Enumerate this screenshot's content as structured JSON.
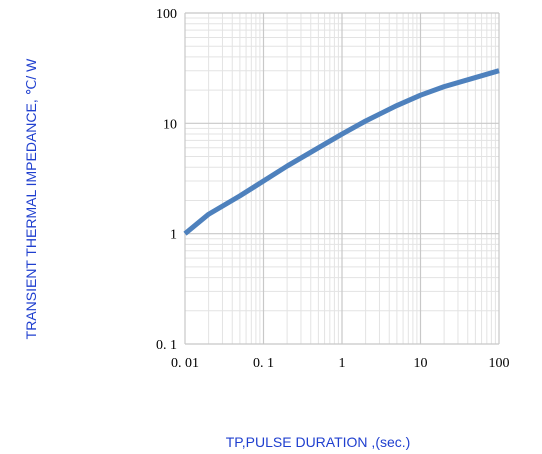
{
  "chart_data": {
    "type": "line",
    "title": "",
    "xlabel": "TP,PULSE DURATION ,(sec.)",
    "ylabel": "TRANSIENT THERMAL IMPEDANCE, ℃/ W",
    "xscale": "log",
    "yscale": "log",
    "xlim": [
      0.01,
      100
    ],
    "ylim": [
      0.1,
      100
    ],
    "xticks": [
      "0. 01",
      "0. 1",
      "1",
      "10",
      "100"
    ],
    "yticks": [
      "0. 1",
      "1",
      "10",
      "100"
    ],
    "grid": "major and minor",
    "legend": "none",
    "colors": {
      "line": "#4e81bd",
      "axis_title": "#1f3fcf",
      "grid_major": "#c8c8c8",
      "grid_minor": "#e3e3e3"
    },
    "series": [
      {
        "x": [
          0.01,
          0.02,
          0.05,
          0.1,
          0.2,
          0.5,
          1,
          2,
          5,
          10,
          20,
          50,
          100
        ],
        "y": [
          1.0,
          1.5,
          2.2,
          3.0,
          4.1,
          6.0,
          8.0,
          10.5,
          14.5,
          18.0,
          21.5,
          26.0,
          30.0
        ]
      }
    ]
  }
}
